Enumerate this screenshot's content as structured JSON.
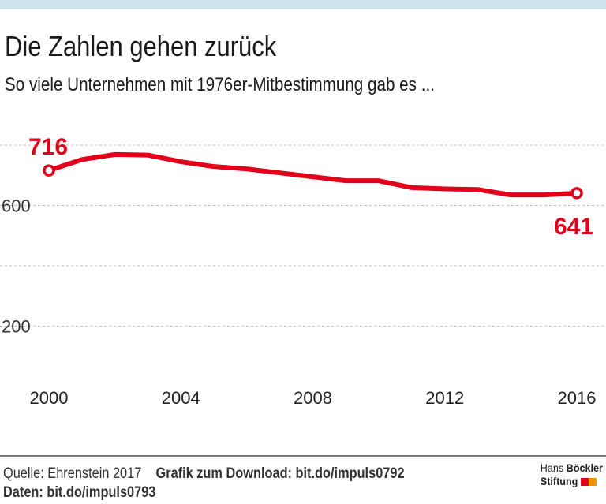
{
  "header": {
    "title": "Die Zahlen gehen zurück",
    "subtitle": "So viele Unternehmen mit 1976er-Mitbestimmung gab es ..."
  },
  "chart_data": {
    "type": "line",
    "x": [
      2000,
      2001,
      2002,
      2003,
      2004,
      2005,
      2006,
      2007,
      2008,
      2009,
      2010,
      2011,
      2012,
      2013,
      2014,
      2015,
      2016
    ],
    "values": [
      716,
      752,
      769,
      767,
      745,
      729,
      721,
      708,
      695,
      682,
      682,
      659,
      655,
      653,
      635,
      635,
      641
    ],
    "xlim": [
      2000,
      2016
    ],
    "ylim": [
      0,
      800
    ],
    "xticks": [
      "2000",
      "2004",
      "2008",
      "2012",
      "2016"
    ],
    "yticks": [
      {
        "v": 600,
        "label": "600"
      },
      {
        "v": 200,
        "label": "200"
      }
    ],
    "gridlines": [
      800,
      600,
      400,
      200
    ],
    "annotations": {
      "first": "716",
      "last": "641"
    },
    "color": "#e3001b",
    "grid": true
  },
  "footer": {
    "source": "Quelle: Ehrenstein 2017",
    "download": "Grafik zum Download: bit.do/impuls0792",
    "data": "Daten: bit.do/impuls0793"
  },
  "logo": {
    "line1a": "Hans",
    "line1b": "Böckler",
    "line2": "Stiftung",
    "colors": [
      "#e3001b",
      "#f39200"
    ]
  }
}
